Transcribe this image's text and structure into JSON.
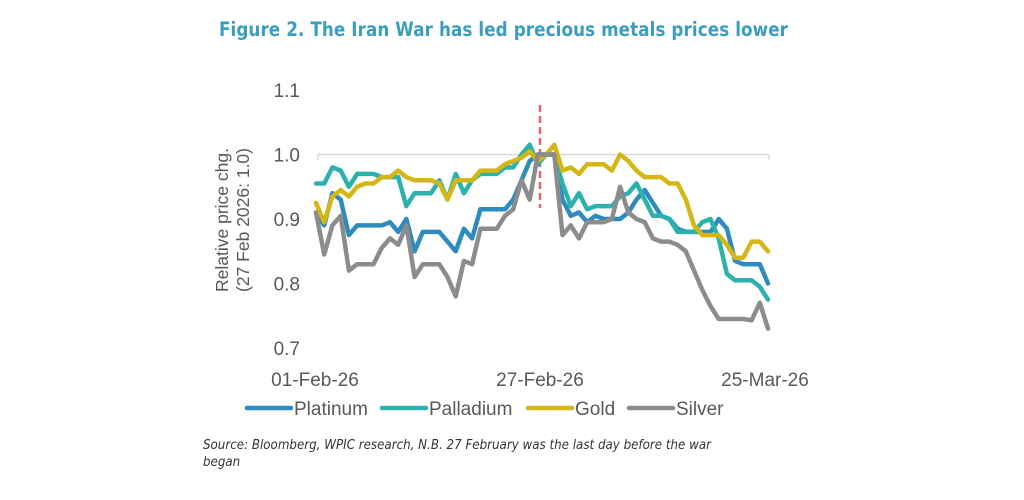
{
  "figure": {
    "title": "Figure 2. The Iran War has led precious metals prices lower",
    "source": "Source: Bloomberg, WPIC research, N.B. 27 February was the last day before the war began"
  },
  "chart_data": {
    "type": "line",
    "title": "Figure 2. The Iran War has led precious metals prices lower",
    "xlabel": "",
    "ylabel": "Relative price chg.\n(27 Feb 2026: 1.0)",
    "ylabel_lines": [
      "Relative price chg.",
      "(27 Feb 2026: 1.0)"
    ],
    "ylim": [
      0.7,
      1.1
    ],
    "yticks": [
      "0.7",
      "0.8",
      "0.9",
      "1.0",
      "1.1"
    ],
    "ytick_values": [
      0.7,
      0.8,
      0.9,
      1.0,
      1.1
    ],
    "xticks": [
      "01-Feb-26",
      "27-Feb-26",
      "25-Mar-26"
    ],
    "xtick_index": [
      0,
      27,
      55
    ],
    "grid": "horizontal line at 1.0",
    "reference_line": {
      "label": "27-Feb-26",
      "index": 27,
      "color": "#e8636b",
      "style": "dashed"
    },
    "legend_position": "bottom",
    "n_points": 56,
    "series": [
      {
        "name": "Platinum",
        "color": "#2e8bc0",
        "values": [
          0.91,
          0.89,
          0.94,
          0.93,
          0.875,
          0.89,
          0.89,
          0.89,
          0.89,
          0.895,
          0.88,
          0.9,
          0.85,
          0.88,
          0.88,
          0.88,
          0.865,
          0.85,
          0.885,
          0.87,
          0.915,
          0.915,
          0.915,
          0.915,
          0.93,
          0.96,
          0.99,
          1.0,
          1.0,
          1.0,
          0.93,
          0.905,
          0.91,
          0.895,
          0.905,
          0.9,
          0.9,
          0.9,
          0.91,
          0.93,
          0.945,
          0.925,
          0.905,
          0.9,
          0.885,
          0.88,
          0.88,
          0.88,
          0.88,
          0.9,
          0.885,
          0.835,
          0.83,
          0.83,
          0.83,
          0.8
        ]
      },
      {
        "name": "Palladium",
        "color": "#2cb2ac",
        "values": [
          0.955,
          0.955,
          0.98,
          0.975,
          0.95,
          0.97,
          0.97,
          0.97,
          0.965,
          0.965,
          0.965,
          0.92,
          0.94,
          0.94,
          0.94,
          0.96,
          0.93,
          0.97,
          0.94,
          0.96,
          0.97,
          0.97,
          0.97,
          0.98,
          0.98,
          1.0,
          1.015,
          0.985,
          1.0,
          1.0,
          0.955,
          0.92,
          0.94,
          0.915,
          0.92,
          0.92,
          0.92,
          0.935,
          0.94,
          0.955,
          0.93,
          0.905,
          0.905,
          0.9,
          0.88,
          0.88,
          0.88,
          0.895,
          0.9,
          0.87,
          0.815,
          0.805,
          0.805,
          0.805,
          0.795,
          0.775
        ]
      },
      {
        "name": "Gold",
        "color": "#d4b614",
        "values": [
          0.925,
          0.895,
          0.935,
          0.945,
          0.935,
          0.95,
          0.955,
          0.955,
          0.965,
          0.965,
          0.975,
          0.965,
          0.96,
          0.96,
          0.96,
          0.955,
          0.93,
          0.96,
          0.96,
          0.96,
          0.975,
          0.975,
          0.975,
          0.985,
          0.99,
          0.995,
          1.005,
          0.99,
          1.0,
          1.015,
          0.975,
          0.98,
          0.97,
          0.985,
          0.985,
          0.985,
          0.975,
          1.0,
          0.99,
          0.975,
          0.965,
          0.965,
          0.965,
          0.955,
          0.955,
          0.93,
          0.89,
          0.875,
          0.875,
          0.875,
          0.86,
          0.84,
          0.84,
          0.865,
          0.865,
          0.85
        ]
      },
      {
        "name": "Silver",
        "color": "#8c8c8c",
        "values": [
          0.91,
          0.845,
          0.89,
          0.905,
          0.82,
          0.83,
          0.83,
          0.83,
          0.855,
          0.87,
          0.86,
          0.89,
          0.81,
          0.83,
          0.83,
          0.83,
          0.81,
          0.78,
          0.835,
          0.83,
          0.885,
          0.885,
          0.885,
          0.905,
          0.915,
          0.96,
          0.93,
          1.0,
          1.0,
          1.0,
          0.875,
          0.89,
          0.87,
          0.895,
          0.895,
          0.895,
          0.9,
          0.95,
          0.91,
          0.9,
          0.895,
          0.87,
          0.865,
          0.865,
          0.86,
          0.85,
          0.82,
          0.79,
          0.765,
          0.745,
          0.745,
          0.745,
          0.745,
          0.743,
          0.77,
          0.73
        ]
      }
    ]
  }
}
